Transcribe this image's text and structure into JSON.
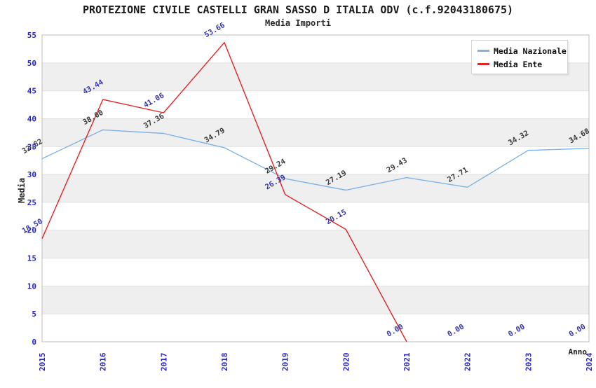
{
  "title": "PROTEZIONE CIVILE CASTELLI GRAN SASSO D ITALIA ODV (c.f.92043180675)",
  "subtitle": "Media Importi",
  "axes": {
    "y_label": "Media",
    "x_label": "Anno"
  },
  "legend": [
    {
      "label": "Media Nazionale",
      "color": "#7eb3e6"
    },
    {
      "label": "Media Ente",
      "color": "#e02424"
    }
  ],
  "chart_data": {
    "type": "line",
    "title": "PROTEZIONE CIVILE CASTELLI GRAN SASSO D ITALIA ODV (c.f.92043180675)",
    "subtitle": "Media Importi",
    "xlabel": "Anno",
    "ylabel": "Media",
    "x": [
      2015,
      2016,
      2017,
      2018,
      2019,
      2020,
      2021,
      2022,
      2023,
      2024
    ],
    "series": [
      {
        "name": "Media Nazionale",
        "color": "#7eb3e6",
        "label_color": "#3a3a3a",
        "values": [
          32.82,
          38.0,
          37.36,
          34.79,
          29.24,
          27.19,
          29.43,
          27.71,
          34.32,
          34.68
        ],
        "stop_at_first_zero": false
      },
      {
        "name": "Media Ente",
        "color": "#e02424",
        "label_color": "#3737a8",
        "values": [
          18.5,
          43.44,
          41.06,
          53.66,
          26.39,
          20.15,
          0.0,
          0.0,
          0.0,
          0.0
        ],
        "stop_at_first_zero": true
      }
    ],
    "ylim": [
      0,
      55
    ],
    "ytick_step": 5,
    "grid": "horizontal-bands",
    "band_color": "#efefef",
    "gridline_color": "#e1e1e1",
    "frame_color": "#bcbcbc",
    "tick_color": "#2424cc",
    "legend_position": "top-right"
  }
}
